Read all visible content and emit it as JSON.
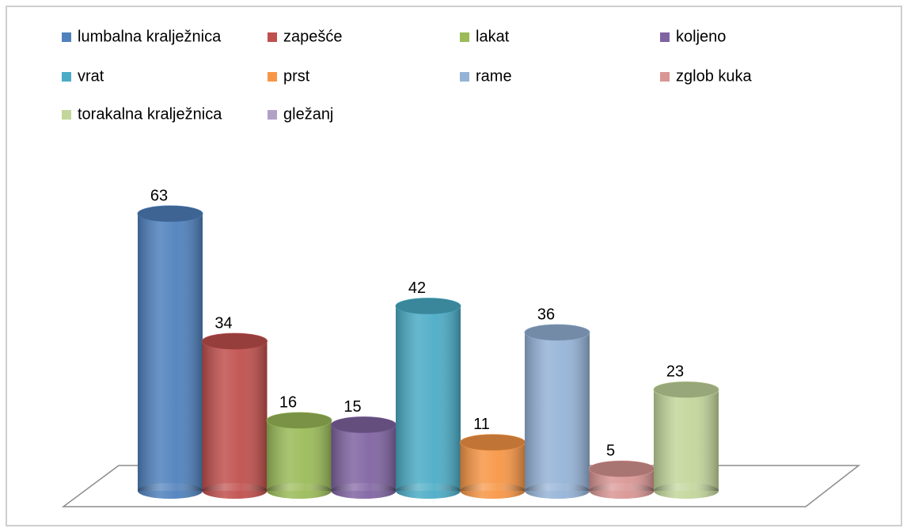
{
  "chart_data": {
    "type": "bar",
    "series": [
      {
        "name": "lumbalna kralježnica",
        "color": "#4f81bd",
        "values": [
          63
        ]
      },
      {
        "name": "zapešće",
        "color": "#c0504d",
        "values": [
          34
        ]
      },
      {
        "name": "lakat",
        "color": "#9bbb59",
        "values": [
          16
        ]
      },
      {
        "name": "koljeno",
        "color": "#8064a2",
        "values": [
          15
        ]
      },
      {
        "name": "vrat",
        "color": "#4bacc6",
        "values": [
          42
        ]
      },
      {
        "name": "prst",
        "color": "#f79646",
        "values": [
          11
        ]
      },
      {
        "name": "rame",
        "color": "#95b3d7",
        "values": [
          36
        ]
      },
      {
        "name": "zglob kuka",
        "color": "#d99694",
        "values": [
          5
        ]
      },
      {
        "name": "torakalna kralježnica",
        "color": "#c3d69b",
        "values": [
          23
        ]
      },
      {
        "name": "gležanj",
        "color": "#b2a1c7",
        "values": [
          null
        ]
      }
    ]
  }
}
